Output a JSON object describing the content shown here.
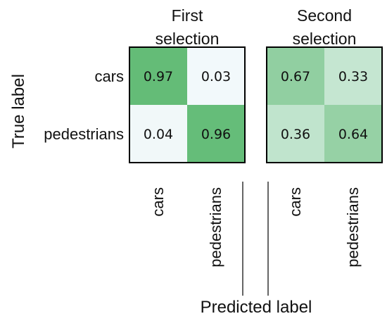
{
  "chart_data": [
    {
      "type": "heatmap",
      "title": "First\nselection",
      "rows": [
        "cars",
        "pedestrians"
      ],
      "cols": [
        "cars",
        "pedestrians"
      ],
      "values": [
        [
          0.97,
          0.03
        ],
        [
          0.04,
          0.96
        ]
      ],
      "cmap": [
        "#f7fbff",
        "#5fba73"
      ],
      "vmin": 0,
      "vmax": 1
    },
    {
      "type": "heatmap",
      "title": "Second\nselection",
      "rows": [
        "cars",
        "pedestrians"
      ],
      "cols": [
        "cars",
        "pedestrians"
      ],
      "values": [
        [
          0.67,
          0.33
        ],
        [
          0.36,
          0.64
        ]
      ],
      "cmap": [
        "#f7fbff",
        "#5fba73"
      ],
      "vmin": 0,
      "vmax": 1
    }
  ],
  "ylabel": "True label",
  "xlabel": "Predicted label"
}
